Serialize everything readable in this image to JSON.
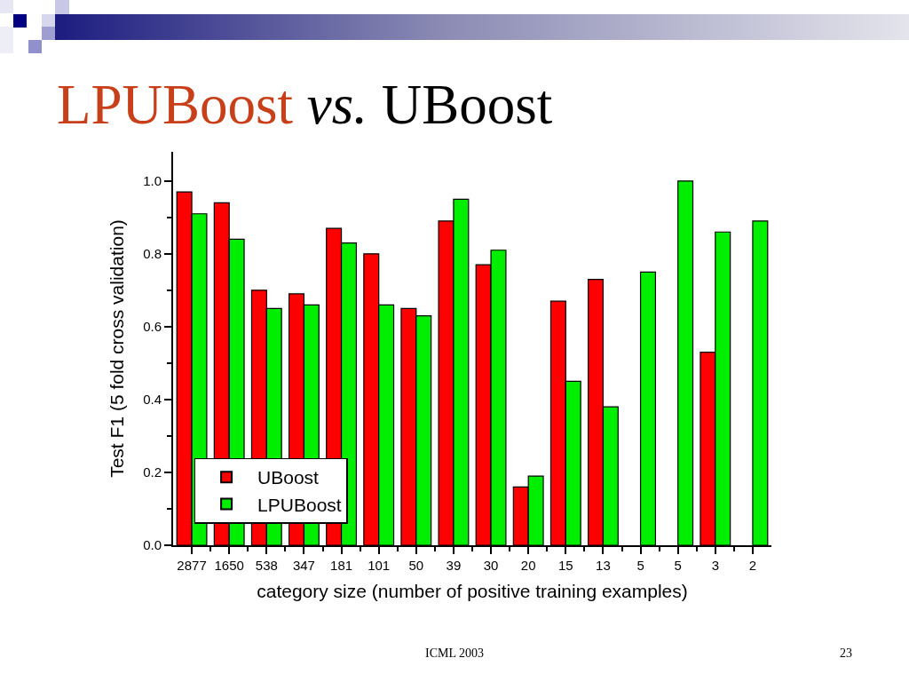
{
  "chart_data": {
    "type": "bar",
    "title": "LPUBoost vs. UBoost",
    "xlabel": "category size (number of positive training examples)",
    "ylabel": "Test F1 (5 fold cross validation)",
    "annotations": [
      "ICML 2003",
      "23"
    ],
    "categories": [
      "2877",
      "1650",
      "538",
      "347",
      "181",
      "101",
      "50",
      "39",
      "30",
      "20",
      "15",
      "13",
      "5",
      "5",
      "3",
      "2"
    ],
    "series": [
      {
        "name": "UBoost",
        "color": "#ff0000",
        "values": [
          0.97,
          0.94,
          0.7,
          0.69,
          0.87,
          0.8,
          0.65,
          0.89,
          0.77,
          0.16,
          0.67,
          0.73,
          null,
          null,
          0.53,
          null
        ]
      },
      {
        "name": "LPUBoost",
        "color": "#00ee00",
        "values": [
          0.91,
          0.84,
          0.65,
          0.66,
          0.83,
          0.66,
          0.63,
          0.95,
          0.81,
          0.19,
          0.45,
          0.38,
          0.75,
          1.0,
          0.86,
          0.89
        ]
      }
    ],
    "ylim": [
      0,
      1.08
    ],
    "yticks": [
      {
        "value": 0,
        "label": "0.0"
      },
      {
        "value": 0.1,
        "label": null
      },
      0.2,
      {
        "value": 0.3,
        "label": null
      },
      0.4,
      {
        "value": 0.5,
        "label": null
      },
      0.6,
      {
        "value": 0.7,
        "label": null
      },
      0.8,
      {
        "value": 0.9,
        "label": null
      },
      {
        "value": 1,
        "label": "1.0"
      }
    ],
    "legend": "bottom left"
  }
}
